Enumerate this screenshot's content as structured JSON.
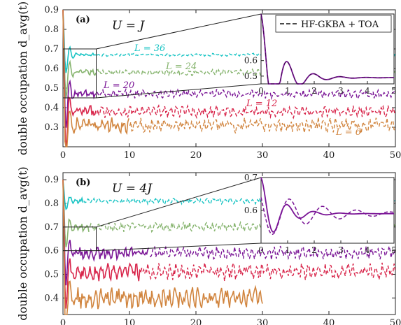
{
  "chart_data": [
    {
      "type": "line",
      "panel": "(a)",
      "annotation": "U = J",
      "ylabel": "double occupation d_avg(t)",
      "xlabel": "",
      "xlim": [
        0,
        50
      ],
      "ylim": [
        0.2,
        0.9
      ],
      "xticks": [
        "0",
        "10",
        "20",
        "30",
        "40",
        "50"
      ],
      "yticks": [
        "0.3",
        "0.4",
        "0.5",
        "0.6",
        "0.7",
        "0.8",
        "0.9"
      ],
      "series": [
        {
          "name": "L = 36",
          "color": "#19c4c4",
          "initial": 0.9,
          "plateau": 0.67,
          "solid_until": 5,
          "end": 50
        },
        {
          "name": "L = 24",
          "color": "#86b46e",
          "initial": 0.9,
          "plateau": 0.58,
          "solid_until": 5,
          "end": 50
        },
        {
          "name": "L = 20",
          "color": "#7a1596",
          "initial": 0.9,
          "plateau": 0.47,
          "solid_until": 5,
          "end": 50
        },
        {
          "name": "L = 12",
          "color": "#d8254a",
          "initial": 0.9,
          "plateau": 0.38,
          "solid_until": 5,
          "end": 50
        },
        {
          "name": "L = 6",
          "color": "#d1853f",
          "initial": 0.9,
          "plateau": 0.31,
          "solid_until": 10,
          "end": 50
        }
      ],
      "inset": {
        "xlim": [
          0,
          5
        ],
        "ylim": [
          0.45,
          0.9
        ],
        "xticks": [
          "0",
          "1",
          "2",
          "3",
          "4",
          "5"
        ],
        "yticks": [
          "0.5",
          "0.6"
        ],
        "legend": "HF-GKBA + TOA",
        "legend_position": "top-right",
        "series": [
          {
            "name": "",
            "color": "#7a1596",
            "initial": 0.9,
            "plateau": 0.49
          }
        ]
      }
    },
    {
      "type": "line",
      "panel": "(b)",
      "annotation": "U = 4J",
      "ylabel": "double occupation d_avg(t)",
      "xlabel": "",
      "xlim": [
        0,
        50
      ],
      "ylim": [
        0.33,
        0.93
      ],
      "xticks": [
        "0",
        "10",
        "20",
        "30",
        "40",
        "50"
      ],
      "yticks": [
        "0.4",
        "0.5",
        "0.6",
        "0.7",
        "0.8",
        "0.9"
      ],
      "series": [
        {
          "name": "L = 36",
          "color": "#19c4c4",
          "initial": 0.9,
          "plateau": 0.81,
          "solid_until": 3,
          "end": 50
        },
        {
          "name": "L = 24",
          "color": "#86b46e",
          "initial": 0.9,
          "plateau": 0.7,
          "solid_until": 4,
          "end": 50
        },
        {
          "name": "L = 20",
          "color": "#7a1596",
          "initial": 0.9,
          "plateau": 0.59,
          "solid_until": 13,
          "end": 50
        },
        {
          "name": "L = 12",
          "color": "#d8254a",
          "initial": 0.9,
          "plateau": 0.51,
          "solid_until": 12,
          "end": 50
        },
        {
          "name": "L = 6",
          "color": "#d1853f",
          "initial": 0.9,
          "plateau": 0.4,
          "solid_until": 30,
          "end": 30
        }
      ],
      "inset": {
        "xlim": [
          0,
          5
        ],
        "ylim": [
          0.5,
          0.7
        ],
        "xticks": [
          "0",
          "1",
          "2",
          "3",
          "4",
          "5"
        ],
        "yticks": [
          "0.6",
          "0.7"
        ],
        "series": [
          {
            "name": "",
            "color": "#7a1596",
            "initial": 0.7,
            "plateau": 0.59
          }
        ]
      }
    }
  ]
}
